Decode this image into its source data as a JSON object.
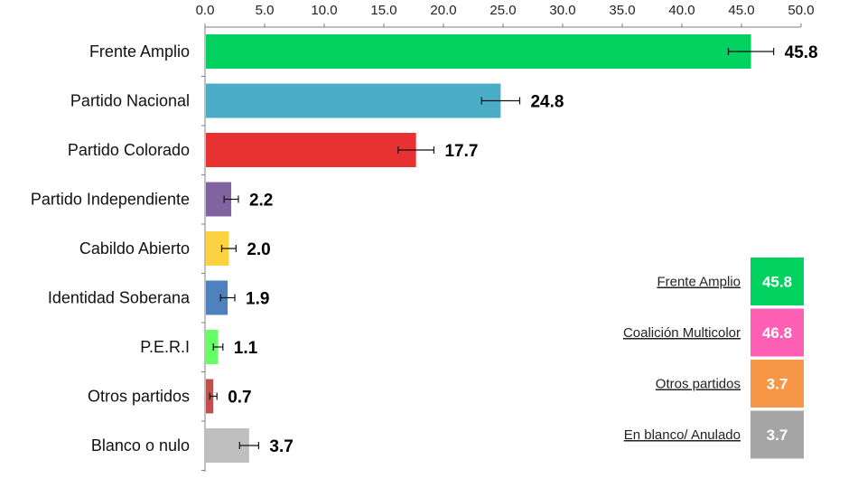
{
  "chart_data": {
    "type": "bar",
    "orientation": "horizontal",
    "categories": [
      "Frente Amplio",
      "Partido Nacional",
      "Partido Colorado",
      "Partido Independiente",
      "Cabildo Abierto",
      "Identidad Soberana",
      "P.E.R.I",
      "Otros partidos",
      "Blanco o nulo"
    ],
    "values": [
      45.8,
      24.8,
      17.7,
      2.2,
      2.0,
      1.9,
      1.1,
      0.7,
      3.7
    ],
    "value_labels": [
      "45.8",
      "24.8",
      "17.7",
      "2.2",
      "2.0",
      "1.9",
      "1.1",
      "0.7",
      "3.7"
    ],
    "error_margin": [
      1.9,
      1.6,
      1.5,
      0.6,
      0.6,
      0.6,
      0.4,
      0.3,
      0.8
    ],
    "colors": [
      "#00d15f",
      "#4bacc6",
      "#e83232",
      "#8064a2",
      "#ffd23f",
      "#4f81bd",
      "#66ff66",
      "#c0504d",
      "#bfbfbf"
    ],
    "x_ticks": [
      "0.0",
      "5.0",
      "10.0",
      "15.0",
      "20.0",
      "25.0",
      "30.0",
      "35.0",
      "40.0",
      "45.0",
      "50.0"
    ],
    "xlim": [
      0,
      50
    ],
    "axis_position": "top",
    "grid": false,
    "summary": [
      {
        "label": "Frente Amplio",
        "value": "45.8",
        "color": "#00d15f"
      },
      {
        "label": "Coalición Multicolor",
        "value": "46.8",
        "color": "#ff5fb4"
      },
      {
        "label": "Otros partidos",
        "value": "3.7",
        "color": "#f79646"
      },
      {
        "label": "En blanco/ Anulado",
        "value": "3.7",
        "color": "#a5a5a5"
      }
    ]
  }
}
